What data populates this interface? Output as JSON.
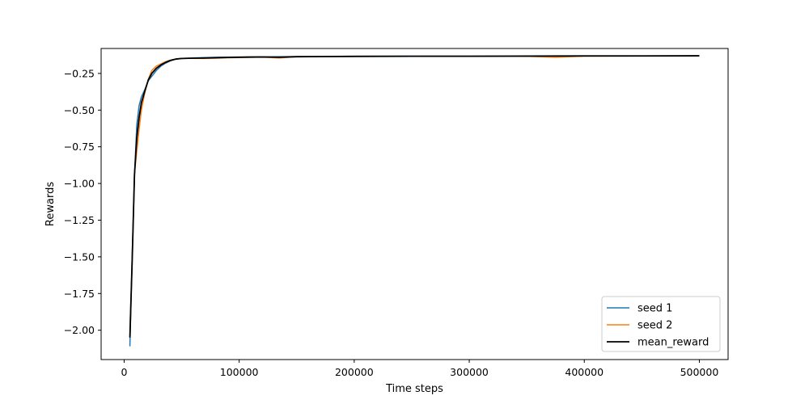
{
  "chart_data": {
    "type": "line",
    "title": "",
    "xlabel": "Time steps",
    "ylabel": "Rewards",
    "xlim": [
      -20000,
      525000
    ],
    "ylim": [
      -2.2,
      -0.08
    ],
    "xticks": [
      0,
      100000,
      200000,
      300000,
      400000,
      500000
    ],
    "xtick_labels": [
      "0",
      "100000",
      "200000",
      "300000",
      "400000",
      "500000"
    ],
    "yticks": [
      -2.0,
      -1.75,
      -1.5,
      -1.25,
      -1.0,
      -0.75,
      -0.5,
      -0.25
    ],
    "ytick_labels": [
      "−2.00",
      "−1.75",
      "−1.50",
      "−1.25",
      "−1.00",
      "−0.75",
      "−0.50",
      "−0.25"
    ],
    "grid": false,
    "legend_position": "lower-right",
    "series": [
      {
        "name": "seed 1",
        "color": "#1f77b4",
        "x": [
          5000,
          7000,
          9000,
          11000,
          13000,
          15000,
          18000,
          21000,
          24000,
          28000,
          32000,
          36000,
          40000,
          45000,
          50000,
          60000,
          70000,
          80000,
          90000,
          100000,
          110000,
          120000,
          135000,
          150000,
          175000,
          200000,
          250000,
          300000,
          350000,
          400000,
          450000,
          500000
        ],
        "y": [
          -2.11,
          -1.5,
          -0.95,
          -0.6,
          -0.47,
          -0.41,
          -0.36,
          -0.3,
          -0.27,
          -0.23,
          -0.2,
          -0.18,
          -0.165,
          -0.152,
          -0.148,
          -0.145,
          -0.142,
          -0.14,
          -0.139,
          -0.138,
          -0.137,
          -0.137,
          -0.136,
          -0.135,
          -0.134,
          -0.133,
          -0.132,
          -0.132,
          -0.131,
          -0.13,
          -0.13,
          -0.13
        ]
      },
      {
        "name": "seed 2",
        "color": "#ff7f0e",
        "x": [
          5000,
          7000,
          9000,
          11000,
          13000,
          15000,
          18000,
          21000,
          24000,
          28000,
          32000,
          36000,
          40000,
          45000,
          50000,
          60000,
          70000,
          80000,
          90000,
          100000,
          110000,
          120000,
          135000,
          150000,
          175000,
          200000,
          250000,
          300000,
          350000,
          375000,
          400000,
          450000,
          500000
        ],
        "y": [
          -2.0,
          -1.55,
          -0.93,
          -0.78,
          -0.63,
          -0.5,
          -0.38,
          -0.29,
          -0.23,
          -0.2,
          -0.185,
          -0.17,
          -0.16,
          -0.152,
          -0.148,
          -0.147,
          -0.148,
          -0.146,
          -0.143,
          -0.142,
          -0.14,
          -0.139,
          -0.145,
          -0.136,
          -0.135,
          -0.134,
          -0.134,
          -0.133,
          -0.133,
          -0.14,
          -0.132,
          -0.131,
          -0.13
        ]
      },
      {
        "name": "mean_reward",
        "color": "#000000",
        "x": [
          5000,
          7000,
          9000,
          11000,
          13000,
          15000,
          18000,
          21000,
          24000,
          28000,
          32000,
          36000,
          40000,
          45000,
          50000,
          60000,
          70000,
          80000,
          90000,
          100000,
          110000,
          120000,
          135000,
          150000,
          175000,
          200000,
          250000,
          300000,
          350000,
          400000,
          450000,
          500000
        ],
        "y": [
          -2.05,
          -1.52,
          -0.94,
          -0.69,
          -0.55,
          -0.45,
          -0.37,
          -0.295,
          -0.25,
          -0.215,
          -0.192,
          -0.175,
          -0.162,
          -0.152,
          -0.148,
          -0.146,
          -0.145,
          -0.143,
          -0.141,
          -0.14,
          -0.139,
          -0.138,
          -0.14,
          -0.136,
          -0.135,
          -0.134,
          -0.133,
          -0.133,
          -0.132,
          -0.131,
          -0.131,
          -0.13
        ]
      }
    ]
  }
}
